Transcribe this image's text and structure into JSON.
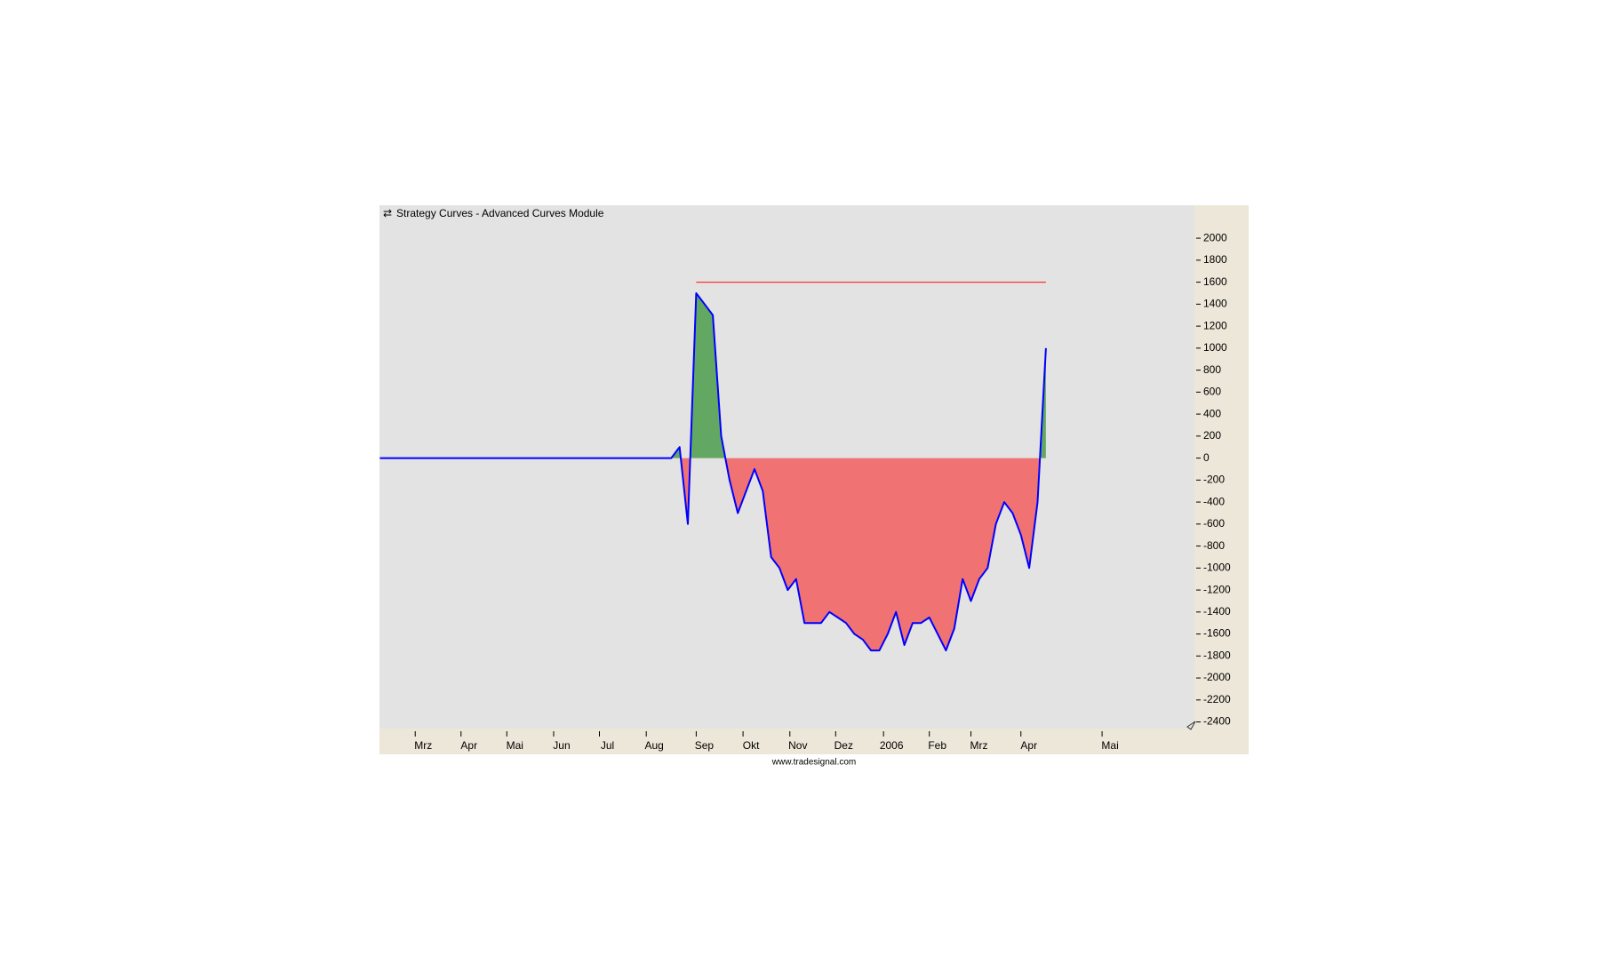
{
  "chart_data": {
    "type": "area",
    "title": "Strategy Curves - Advanced Curves Module",
    "footer": "www.tradesignal.com",
    "x_labels": [
      "Mrz",
      "Apr",
      "Mai",
      "Jun",
      "Jul",
      "Aug",
      "Sep",
      "Okt",
      "Nov",
      "Dez",
      "2006",
      "Feb",
      "Mrz",
      "Apr",
      "Mai"
    ],
    "series": [
      {
        "color": "#0000ff",
        "values": [
          0,
          0,
          0,
          0,
          0,
          0,
          0,
          0,
          0,
          0,
          0,
          0,
          0,
          0,
          0,
          0,
          0,
          0,
          0,
          0,
          0,
          0,
          0,
          0,
          0,
          0,
          0,
          0,
          0,
          0,
          0,
          0,
          0,
          0,
          0,
          0,
          100,
          -600,
          1500,
          1400,
          1300,
          200,
          -200,
          -500,
          -300,
          -100,
          -300,
          -900,
          -1000,
          -1200,
          -1100,
          -1500,
          -1500,
          -1500,
          -1400,
          -1450,
          -1500,
          -1600,
          -1650,
          -1750,
          -1750,
          -1600,
          -1400,
          -1700,
          -1500,
          -1500,
          -1450,
          -1600,
          -1750,
          -1550,
          -1100,
          -1300,
          -1100,
          -1000,
          -600,
          -400,
          -500,
          -700,
          -1000,
          -400,
          1000
        ]
      },
      {
        "color": "#ff3030",
        "values": [
          null,
          null,
          null,
          null,
          null,
          null,
          null,
          null,
          null,
          null,
          null,
          null,
          null,
          null,
          null,
          null,
          null,
          null,
          null,
          null,
          null,
          null,
          null,
          null,
          null,
          null,
          null,
          null,
          null,
          null,
          null,
          null,
          null,
          null,
          null,
          null,
          null,
          null,
          1600,
          1600,
          1600,
          1600,
          1600,
          1600,
          1600,
          1600,
          1600,
          1600,
          1600,
          1600,
          1600,
          1600,
          1600,
          1600,
          1600,
          1600,
          1600,
          1600,
          1600,
          1600,
          1600,
          1600,
          1600,
          1600,
          1600,
          1600,
          1600,
          1600,
          1600,
          1600,
          1600,
          1600,
          1600,
          1600,
          1600,
          1600,
          1600,
          1600,
          1600,
          1600,
          1600
        ]
      }
    ],
    "positive_color": "#62a862",
    "negative_color": "#f07272",
    "ylim": [
      -2460,
      2130
    ],
    "yticks": [
      -2400,
      -2200,
      -2000,
      -1800,
      -1600,
      -1400,
      -1200,
      -1000,
      -800,
      -600,
      -400,
      -200,
      0,
      200,
      400,
      600,
      800,
      1000,
      1200,
      1400,
      1600,
      1800,
      2000
    ]
  }
}
